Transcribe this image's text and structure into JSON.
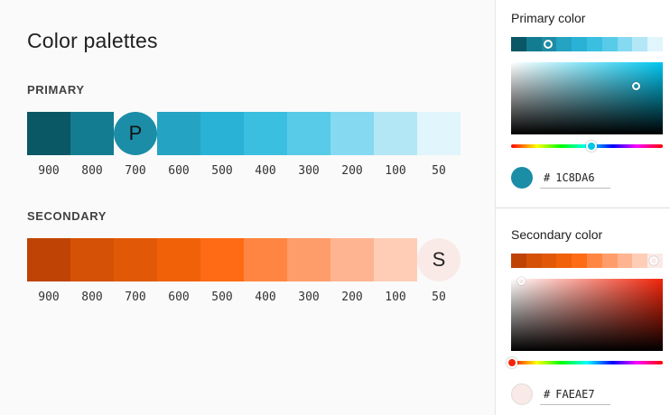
{
  "title": "Color palettes",
  "primary": {
    "label": "PRIMARY",
    "letter": "P",
    "swatches": [
      {
        "shade": "900",
        "color": "#0a5766"
      },
      {
        "shade": "800",
        "color": "#147c91"
      },
      {
        "shade": "700",
        "color": "#1c8da6"
      },
      {
        "shade": "600",
        "color": "#24a3c3"
      },
      {
        "shade": "500",
        "color": "#29b2d6"
      },
      {
        "shade": "400",
        "color": "#3bbfe0"
      },
      {
        "shade": "300",
        "color": "#57cbe8"
      },
      {
        "shade": "200",
        "color": "#85d9f0"
      },
      {
        "shade": "100",
        "color": "#b3e7f6"
      },
      {
        "shade": "50",
        "color": "#e0f5fc"
      }
    ]
  },
  "secondary": {
    "label": "SECONDARY",
    "letter": "S",
    "swatches": [
      {
        "shade": "900",
        "color": "#bf4304"
      },
      {
        "shade": "800",
        "color": "#d55105"
      },
      {
        "shade": "700",
        "color": "#e15906"
      },
      {
        "shade": "600",
        "color": "#f06108"
      },
      {
        "shade": "500",
        "color": "#ff6a14"
      },
      {
        "shade": "400",
        "color": "#ff8642"
      },
      {
        "shade": "300",
        "color": "#ff9d6a"
      },
      {
        "shade": "200",
        "color": "#ffb491"
      },
      {
        "shade": "100",
        "color": "#ffcdb6"
      },
      {
        "shade": "50",
        "color": "#faeae7"
      }
    ]
  },
  "panel": {
    "primary_title": "Primary color",
    "primary_hex": "1C8DA6",
    "primary_preview": "#1c8da6",
    "secondary_title": "Secondary color",
    "secondary_hex": "FAEAE7",
    "secondary_preview": "#faeae7",
    "hash": "#"
  }
}
